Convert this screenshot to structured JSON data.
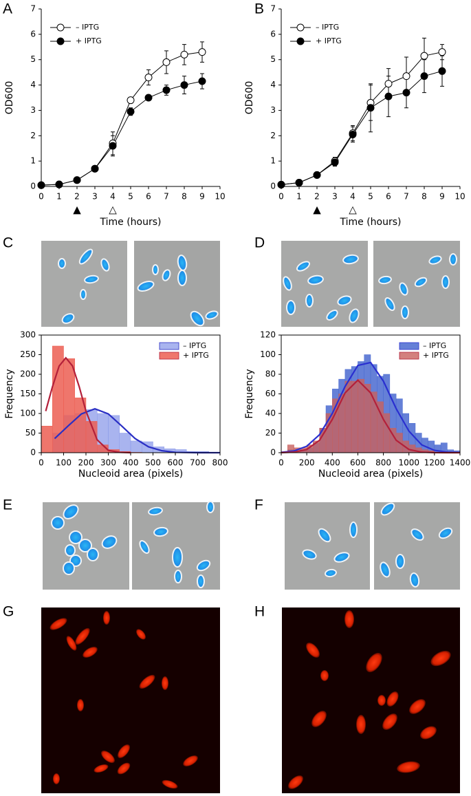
{
  "panel_labels": [
    "A",
    "B",
    "C",
    "D",
    "E",
    "F",
    "G",
    "H"
  ],
  "chart_data": [
    {
      "type": "line",
      "xlabel": "Time (hours)",
      "ylabel": "OD600",
      "xlim": [
        0,
        10
      ],
      "xticks": [
        0,
        1,
        2,
        3,
        4,
        5,
        6,
        7,
        8,
        9,
        10
      ],
      "ylim": [
        0,
        7
      ],
      "yticks": [
        0,
        1,
        2,
        3,
        4,
        5,
        6,
        7
      ],
      "x": [
        0,
        1,
        2,
        3,
        4,
        5,
        6,
        7,
        8,
        9
      ],
      "series": [
        {
          "name": "– IPTG",
          "color": "#000000",
          "fill": "#ffffff",
          "values": [
            0.05,
            0.08,
            0.25,
            0.7,
            1.7,
            3.4,
            4.3,
            4.9,
            5.2,
            5.3
          ],
          "errors": [
            0.02,
            0.02,
            0.03,
            0.1,
            0.45,
            0.1,
            0.3,
            0.45,
            0.4,
            0.4
          ]
        },
        {
          "name": "+ IPTG",
          "color": "#000000",
          "fill": "#000000",
          "values": [
            0.05,
            0.08,
            0.25,
            0.7,
            1.6,
            2.95,
            3.5,
            3.8,
            4.0,
            4.15
          ],
          "errors": [
            0.02,
            0.02,
            0.03,
            0.1,
            0.4,
            0.15,
            0.1,
            0.2,
            0.35,
            0.3
          ]
        }
      ],
      "annotations": [
        {
          "x": 2,
          "label": "▲"
        },
        {
          "x": 4,
          "label": "△"
        }
      ]
    },
    {
      "type": "line",
      "xlabel": "Time (hours)",
      "ylabel": "OD600",
      "xlim": [
        0,
        10
      ],
      "xticks": [
        0,
        1,
        2,
        3,
        4,
        5,
        6,
        7,
        8,
        9,
        10
      ],
      "ylim": [
        0,
        7
      ],
      "yticks": [
        0,
        1,
        2,
        3,
        4,
        5,
        6,
        7
      ],
      "x": [
        0,
        1,
        2,
        3,
        4,
        5,
        6,
        7,
        8,
        9
      ],
      "series": [
        {
          "name": "– IPTG",
          "color": "#000000",
          "fill": "#ffffff",
          "values": [
            0.07,
            0.15,
            0.45,
            1.0,
            2.1,
            3.3,
            4.05,
            4.35,
            5.15,
            5.3
          ],
          "errors": [
            0.02,
            0.03,
            0.05,
            0.15,
            0.3,
            0.7,
            0.6,
            0.75,
            0.7,
            0.3
          ]
        },
        {
          "name": "+ IPTG",
          "color": "#000000",
          "fill": "#000000",
          "values": [
            0.07,
            0.15,
            0.45,
            0.95,
            2.05,
            3.1,
            3.55,
            3.7,
            4.35,
            4.55
          ],
          "errors": [
            0.02,
            0.03,
            0.05,
            0.15,
            0.3,
            0.95,
            0.8,
            0.6,
            0.65,
            0.6
          ]
        }
      ],
      "annotations": [
        {
          "x": 2,
          "label": "▲"
        },
        {
          "x": 4,
          "label": "△"
        }
      ]
    },
    {
      "type": "histogram",
      "xlabel": "Nucleoid area (pixels)",
      "ylabel": "Frequency",
      "xlim": [
        0,
        800
      ],
      "xticks": [
        0,
        100,
        200,
        300,
        400,
        500,
        600,
        700,
        800
      ],
      "ylim": [
        0,
        300
      ],
      "yticks": [
        0,
        50,
        100,
        150,
        200,
        250,
        300
      ],
      "bins": [
        0,
        50,
        100,
        150,
        200,
        250,
        300,
        350,
        400,
        450,
        500,
        550,
        600,
        650,
        700,
        750,
        800
      ],
      "series": [
        {
          "name": "– IPTG",
          "color": "#8c9bea",
          "opacity": 0.75,
          "values": [
            0,
            50,
            95,
            100,
            110,
            100,
            95,
            50,
            30,
            28,
            15,
            10,
            8,
            3,
            3,
            0
          ],
          "fit_color": "#2a2fc4",
          "fit": {
            "x": [
              60,
              120,
              180,
              240,
              300,
              360,
              420,
              480,
              540,
              600,
              700,
              800
            ],
            "values": [
              36,
              68,
              99,
              112,
              99,
              68,
              36,
              15,
              5,
              1,
              0,
              0
            ]
          }
        },
        {
          "name": "+ IPTG",
          "color": "#ec5e52",
          "opacity": 0.85,
          "values": [
            68,
            272,
            240,
            140,
            80,
            20,
            8,
            3,
            1,
            0,
            0,
            0,
            0,
            0,
            0,
            0
          ],
          "fit_color": "#b3203a",
          "fit": {
            "x": [
              20,
              50,
              80,
              110,
              140,
              170,
              200,
              250,
              300,
              350,
              400
            ],
            "values": [
              106,
              168,
              221,
              242,
              221,
              168,
              106,
              33,
              6,
              1,
              0
            ]
          }
        }
      ]
    },
    {
      "type": "histogram",
      "xlabel": "Nucleoid area (pixels)",
      "ylabel": "Frequency",
      "xlim": [
        0,
        1400
      ],
      "xticks": [
        0,
        200,
        400,
        600,
        800,
        1000,
        1200,
        1400
      ],
      "ylim": [
        0,
        120
      ],
      "yticks": [
        0,
        20,
        40,
        60,
        80,
        100,
        120
      ],
      "bins": [
        0,
        50,
        100,
        150,
        200,
        250,
        300,
        350,
        400,
        450,
        500,
        550,
        600,
        650,
        700,
        750,
        800,
        850,
        900,
        950,
        1000,
        1050,
        1100,
        1150,
        1200,
        1250,
        1300,
        1350,
        1400
      ],
      "series": [
        {
          "name": "– IPTG",
          "color": "#4a6ad0",
          "opacity": 0.85,
          "values": [
            0,
            3,
            2,
            3,
            5,
            10,
            25,
            48,
            65,
            75,
            85,
            88,
            93,
            100,
            90,
            78,
            80,
            60,
            55,
            40,
            30,
            20,
            15,
            12,
            8,
            10,
            3,
            2
          ],
          "fit_color": "#2a2fd0",
          "fit": {
            "x": [
              0,
              100,
              200,
              300,
              400,
              500,
              600,
              700,
              800,
              900,
              1000,
              1100,
              1200,
              1300,
              1400
            ],
            "values": [
              0.4,
              1.8,
              6.6,
              18.4,
              40,
              67.5,
              89,
              92,
              73,
              45,
              22,
              8,
              2.4,
              0.6,
              0.1
            ]
          }
        },
        {
          "name": "+ IPTG",
          "color": "#c8605e",
          "opacity": 0.8,
          "values": [
            0,
            8,
            5,
            5,
            8,
            12,
            25,
            40,
            55,
            60,
            73,
            73,
            75,
            70,
            62,
            52,
            40,
            25,
            20,
            12,
            8,
            5,
            3,
            2,
            0,
            0,
            0,
            0
          ],
          "fit_color": "#b3203a",
          "fit": {
            "x": [
              0,
              100,
              200,
              300,
              400,
              500,
              600,
              700,
              800,
              900,
              1000,
              1100,
              1200,
              1300,
              1400
            ],
            "values": [
              0.07,
              0.6,
              3.3,
              12.7,
              34,
              61,
              74,
              61,
              34,
              12.7,
              3.3,
              0.6,
              0.07,
              0,
              0
            ]
          }
        }
      ]
    }
  ]
}
